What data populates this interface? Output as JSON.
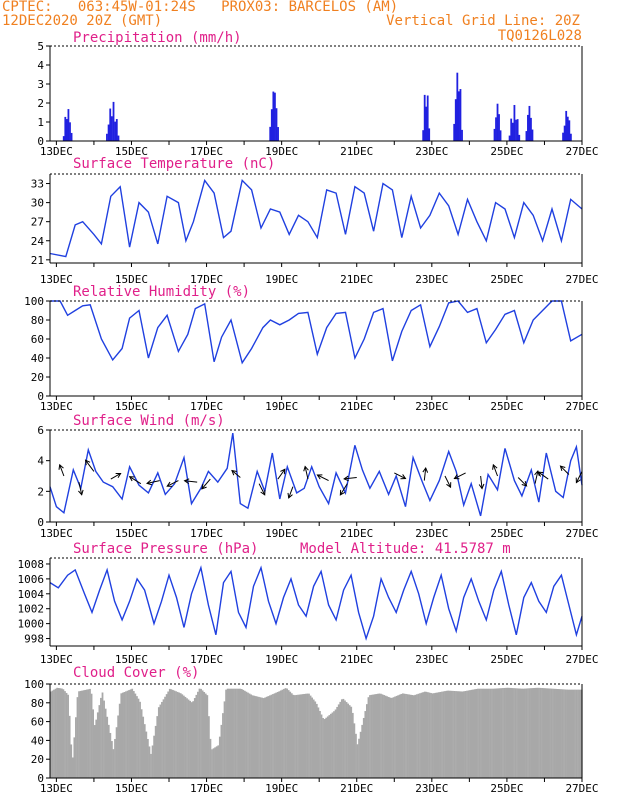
{
  "header": {
    "line1_left": "CPTEC:   063:45W-01:24S   PROX03: BARCELOS (AM)",
    "line2_left": "12DEC2020 20Z (GMT)",
    "line2_right": "Vertical Grid Line: 20Z",
    "line3_right": "TQ0126L028"
  },
  "colors": {
    "header": "#f08020",
    "title": "#e0208a",
    "series": "#2040e0",
    "bars": "#2020e0",
    "cloud": "#a8a8a8"
  },
  "x_tick_labels": [
    "13DEC",
    "15DEC",
    "17DEC",
    "19DEC",
    "21DEC",
    "23DEC",
    "25DEC",
    "27DEC"
  ],
  "chart_data": [
    {
      "type": "bar",
      "title": "Precipitation (mm/h)",
      "ylim": [
        0,
        5
      ],
      "yticks": [
        0,
        1,
        2,
        3,
        4,
        5
      ],
      "x_days": [
        12.83,
        27.0
      ],
      "events": [
        {
          "x": 13.3,
          "peak": 1.8,
          "width": 0.25
        },
        {
          "x": 14.5,
          "peak": 2.1,
          "width": 0.35
        },
        {
          "x": 18.8,
          "peak": 3.0,
          "width": 0.25
        },
        {
          "x": 22.85,
          "peak": 3.0,
          "width": 0.2
        },
        {
          "x": 23.7,
          "peak": 3.9,
          "width": 0.25
        },
        {
          "x": 24.75,
          "peak": 2.1,
          "width": 0.2
        },
        {
          "x": 25.2,
          "peak": 1.9,
          "width": 0.3
        },
        {
          "x": 25.6,
          "peak": 2.0,
          "width": 0.2
        },
        {
          "x": 26.6,
          "peak": 1.7,
          "width": 0.25
        }
      ]
    },
    {
      "type": "line",
      "title": "Surface Temperature (nC)",
      "ylim": [
        20.5,
        34.5
      ],
      "yticks": [
        21,
        24,
        27,
        30,
        33
      ],
      "x": [
        12.83,
        13.25,
        13.5,
        13.7,
        14.0,
        14.2,
        14.45,
        14.7,
        14.95,
        15.2,
        15.45,
        15.7,
        15.95,
        16.25,
        16.45,
        16.65,
        16.95,
        17.2,
        17.45,
        17.65,
        17.95,
        18.2,
        18.45,
        18.7,
        18.95,
        19.2,
        19.45,
        19.7,
        19.95,
        20.2,
        20.45,
        20.7,
        20.95,
        21.2,
        21.45,
        21.7,
        21.95,
        22.2,
        22.45,
        22.7,
        22.95,
        23.2,
        23.45,
        23.7,
        23.95,
        24.2,
        24.45,
        24.7,
        24.95,
        25.2,
        25.45,
        25.7,
        25.95,
        26.2,
        26.45,
        26.7,
        27.0
      ],
      "y": [
        22.0,
        21.5,
        26.5,
        27.0,
        25.0,
        23.5,
        31.0,
        32.5,
        23.0,
        30.0,
        28.5,
        23.5,
        31.0,
        30.0,
        24.0,
        27.0,
        33.5,
        31.5,
        24.5,
        25.5,
        33.5,
        32.0,
        26.0,
        29.0,
        28.5,
        25.0,
        28.0,
        27.0,
        24.5,
        32.0,
        31.5,
        25.0,
        32.5,
        31.5,
        25.5,
        33.0,
        32.0,
        24.5,
        31.0,
        26.0,
        28.0,
        31.5,
        29.5,
        25.0,
        30.5,
        27.0,
        24.0,
        30.0,
        29.0,
        24.5,
        30.0,
        28.0,
        24.0,
        29.0,
        24.0,
        30.5,
        29.0
      ]
    },
    {
      "type": "line",
      "title": "Relative Humidity (%)",
      "ylim": [
        0,
        100
      ],
      "yticks": [
        0,
        20,
        40,
        60,
        80,
        100
      ],
      "x": [
        12.83,
        13.1,
        13.3,
        13.5,
        13.7,
        13.9,
        14.2,
        14.5,
        14.75,
        14.95,
        15.2,
        15.45,
        15.7,
        15.95,
        16.25,
        16.5,
        16.7,
        16.95,
        17.2,
        17.4,
        17.65,
        17.95,
        18.2,
        18.5,
        18.7,
        18.95,
        19.2,
        19.45,
        19.7,
        19.95,
        20.2,
        20.45,
        20.7,
        20.95,
        21.2,
        21.45,
        21.7,
        21.95,
        22.2,
        22.45,
        22.7,
        22.95,
        23.2,
        23.45,
        23.7,
        23.95,
        24.2,
        24.45,
        24.7,
        24.95,
        25.2,
        25.45,
        25.7,
        25.95,
        26.2,
        26.45,
        26.7,
        27.0
      ],
      "y": [
        100,
        100,
        85,
        90,
        95,
        96,
        60,
        38,
        50,
        82,
        90,
        40,
        72,
        85,
        47,
        65,
        92,
        97,
        36,
        62,
        80,
        35,
        50,
        72,
        80,
        75,
        80,
        87,
        88,
        44,
        72,
        87,
        88,
        40,
        60,
        88,
        92,
        37,
        68,
        90,
        96,
        52,
        73,
        98,
        100,
        88,
        92,
        56,
        70,
        86,
        90,
        56,
        80,
        90,
        100,
        100,
        58,
        65
      ]
    },
    {
      "type": "line",
      "title": "Surface Wind (m/s)",
      "ylim": [
        0,
        6
      ],
      "yticks": [
        0,
        2,
        4,
        6
      ],
      "x": [
        12.83,
        13.0,
        13.2,
        13.45,
        13.65,
        13.85,
        14.05,
        14.25,
        14.5,
        14.75,
        14.95,
        15.2,
        15.45,
        15.7,
        15.9,
        16.15,
        16.4,
        16.6,
        16.85,
        17.05,
        17.3,
        17.55,
        17.7,
        17.9,
        18.1,
        18.35,
        18.55,
        18.75,
        18.95,
        19.15,
        19.4,
        19.6,
        19.8,
        20.0,
        20.25,
        20.45,
        20.7,
        20.95,
        21.15,
        21.35,
        21.6,
        21.85,
        22.05,
        22.3,
        22.5,
        22.75,
        22.95,
        23.2,
        23.45,
        23.65,
        23.85,
        24.05,
        24.3,
        24.5,
        24.75,
        24.95,
        25.2,
        25.4,
        25.65,
        25.85,
        26.05,
        26.3,
        26.5,
        26.7,
        26.85,
        27.0
      ],
      "y": [
        2.3,
        1.0,
        0.6,
        3.4,
        2.2,
        4.7,
        3.3,
        2.6,
        2.3,
        1.5,
        3.6,
        2.4,
        1.9,
        3.2,
        1.8,
        2.5,
        4.2,
        1.2,
        2.2,
        3.3,
        2.6,
        3.5,
        5.8,
        1.2,
        0.9,
        3.3,
        2.0,
        4.5,
        1.5,
        3.6,
        1.9,
        2.2,
        3.6,
        2.3,
        1.2,
        3.2,
        1.9,
        5.0,
        3.4,
        2.2,
        3.3,
        1.8,
        3.0,
        1.0,
        4.2,
        2.6,
        1.4,
        2.7,
        4.6,
        3.3,
        1.1,
        2.5,
        0.4,
        3.1,
        2.1,
        4.8,
        2.7,
        1.7,
        3.4,
        1.3,
        4.5,
        2.0,
        1.6,
        4.0,
        4.9,
        2.4
      ],
      "arrows": [
        {
          "x": 13.2,
          "y": 3.0,
          "dx": -0.3,
          "dy": -0.8
        },
        {
          "x": 13.6,
          "y": 2.6,
          "dx": 0.2,
          "dy": 0.9
        },
        {
          "x": 14.0,
          "y": 3.3,
          "dx": -0.6,
          "dy": -0.8
        },
        {
          "x": 14.45,
          "y": 2.8,
          "dx": 0.7,
          "dy": -0.4
        },
        {
          "x": 15.25,
          "y": 2.5,
          "dx": -0.8,
          "dy": -0.5
        },
        {
          "x": 15.75,
          "y": 2.7,
          "dx": -0.9,
          "dy": 0.2
        },
        {
          "x": 16.25,
          "y": 2.7,
          "dx": -0.8,
          "dy": 0.4
        },
        {
          "x": 16.75,
          "y": 2.6,
          "dx": -0.9,
          "dy": -0.1
        },
        {
          "x": 17.1,
          "y": 2.8,
          "dx": -0.6,
          "dy": 0.7
        },
        {
          "x": 17.9,
          "y": 2.9,
          "dx": -0.6,
          "dy": -0.5
        },
        {
          "x": 18.4,
          "y": 2.5,
          "dx": 0.4,
          "dy": 0.8
        },
        {
          "x": 18.9,
          "y": 2.8,
          "dx": 0.5,
          "dy": -0.7
        },
        {
          "x": 19.3,
          "y": 2.3,
          "dx": -0.3,
          "dy": 0.8
        },
        {
          "x": 19.7,
          "y": 2.8,
          "dx": -0.2,
          "dy": -0.9
        },
        {
          "x": 20.25,
          "y": 2.7,
          "dx": -0.8,
          "dy": -0.4
        },
        {
          "x": 20.75,
          "y": 2.5,
          "dx": -0.5,
          "dy": 0.8
        },
        {
          "x": 21.0,
          "y": 2.9,
          "dx": -0.9,
          "dy": 0.1
        },
        {
          "x": 22.0,
          "y": 3.2,
          "dx": 0.8,
          "dy": 0.4
        },
        {
          "x": 22.8,
          "y": 2.7,
          "dx": 0.1,
          "dy": -0.9
        },
        {
          "x": 23.35,
          "y": 3.0,
          "dx": 0.4,
          "dy": 0.8
        },
        {
          "x": 23.9,
          "y": 3.2,
          "dx": -0.8,
          "dy": 0.4
        },
        {
          "x": 24.3,
          "y": 3.0,
          "dx": 0.1,
          "dy": 0.9
        },
        {
          "x": 24.75,
          "y": 3.0,
          "dx": -0.3,
          "dy": -0.8
        },
        {
          "x": 25.3,
          "y": 2.9,
          "dx": 0.6,
          "dy": 0.6
        },
        {
          "x": 25.75,
          "y": 2.5,
          "dx": 0.2,
          "dy": -0.9
        },
        {
          "x": 26.1,
          "y": 2.8,
          "dx": -0.7,
          "dy": -0.5
        },
        {
          "x": 26.65,
          "y": 3.1,
          "dx": -0.6,
          "dy": -0.6
        },
        {
          "x": 27.0,
          "y": 3.3,
          "dx": -0.4,
          "dy": 0.8
        }
      ]
    },
    {
      "type": "line",
      "title": "Surface Pressure (hPa)",
      "annotation": "Model Altitude: 41.5787 m",
      "ylim": [
        997,
        1008.8
      ],
      "yticks": [
        998,
        1000,
        1002,
        1004,
        1006,
        1008
      ],
      "x": [
        12.83,
        13.05,
        13.3,
        13.5,
        13.75,
        13.95,
        14.15,
        14.35,
        14.55,
        14.75,
        14.95,
        15.15,
        15.35,
        15.6,
        15.8,
        16.0,
        16.2,
        16.4,
        16.6,
        16.85,
        17.05,
        17.25,
        17.45,
        17.65,
        17.85,
        18.05,
        18.25,
        18.45,
        18.65,
        18.85,
        19.05,
        19.25,
        19.45,
        19.65,
        19.85,
        20.05,
        20.25,
        20.45,
        20.65,
        20.85,
        21.05,
        21.25,
        21.45,
        21.65,
        21.85,
        22.05,
        22.25,
        22.45,
        22.65,
        22.85,
        23.05,
        23.25,
        23.45,
        23.65,
        23.85,
        24.05,
        24.25,
        24.45,
        24.65,
        24.85,
        25.05,
        25.25,
        25.45,
        25.65,
        25.85,
        26.05,
        26.25,
        26.45,
        26.65,
        26.85,
        27.0
      ],
      "y": [
        1005.5,
        1004.8,
        1006.5,
        1007.2,
        1004.0,
        1001.5,
        1004.5,
        1007.2,
        1003.0,
        1000.5,
        1003.0,
        1006.0,
        1004.5,
        1000.0,
        1003.0,
        1006.5,
        1003.5,
        999.5,
        1004.0,
        1007.5,
        1002.5,
        998.5,
        1005.5,
        1007.0,
        1001.5,
        999.5,
        1005.0,
        1007.5,
        1003.0,
        1000.0,
        1003.5,
        1006.0,
        1002.5,
        1001.0,
        1005.0,
        1007.0,
        1002.5,
        1000.5,
        1004.5,
        1006.5,
        1001.5,
        998.0,
        1001.0,
        1006.0,
        1003.5,
        1001.5,
        1004.5,
        1007.0,
        1004.0,
        1000.0,
        1003.5,
        1006.5,
        1002.0,
        999.0,
        1003.5,
        1006.0,
        1003.0,
        1000.5,
        1004.5,
        1007.0,
        1002.5,
        998.5,
        1003.5,
        1005.5,
        1003.0,
        1001.5,
        1005.0,
        1006.5,
        1002.5,
        998.5,
        1001.0
      ]
    },
    {
      "type": "bar",
      "title": "Cloud Cover (%)",
      "ylim": [
        0,
        100
      ],
      "yticks": [
        0,
        20,
        40,
        60,
        80,
        100
      ],
      "x_days": [
        12.83,
        27.0
      ],
      "anchors": [
        {
          "x": 12.83,
          "y": 92
        },
        {
          "x": 13.0,
          "y": 96
        },
        {
          "x": 13.15,
          "y": 95
        },
        {
          "x": 13.3,
          "y": 88
        },
        {
          "x": 13.4,
          "y": 15
        },
        {
          "x": 13.55,
          "y": 92
        },
        {
          "x": 13.9,
          "y": 95
        },
        {
          "x": 14.0,
          "y": 55
        },
        {
          "x": 14.2,
          "y": 92
        },
        {
          "x": 14.5,
          "y": 30
        },
        {
          "x": 14.7,
          "y": 90
        },
        {
          "x": 15.0,
          "y": 95
        },
        {
          "x": 15.2,
          "y": 82
        },
        {
          "x": 15.5,
          "y": 25
        },
        {
          "x": 15.7,
          "y": 75
        },
        {
          "x": 16.0,
          "y": 95
        },
        {
          "x": 16.3,
          "y": 90
        },
        {
          "x": 16.6,
          "y": 80
        },
        {
          "x": 16.8,
          "y": 96
        },
        {
          "x": 17.0,
          "y": 88
        },
        {
          "x": 17.1,
          "y": 30
        },
        {
          "x": 17.3,
          "y": 35
        },
        {
          "x": 17.5,
          "y": 95
        },
        {
          "x": 17.9,
          "y": 95
        },
        {
          "x": 18.2,
          "y": 88
        },
        {
          "x": 18.5,
          "y": 85
        },
        {
          "x": 18.9,
          "y": 92
        },
        {
          "x": 19.1,
          "y": 96
        },
        {
          "x": 19.3,
          "y": 88
        },
        {
          "x": 19.7,
          "y": 90
        },
        {
          "x": 19.9,
          "y": 80
        },
        {
          "x": 20.1,
          "y": 62
        },
        {
          "x": 20.4,
          "y": 72
        },
        {
          "x": 20.6,
          "y": 85
        },
        {
          "x": 20.85,
          "y": 75
        },
        {
          "x": 21.0,
          "y": 35
        },
        {
          "x": 21.3,
          "y": 88
        },
        {
          "x": 21.6,
          "y": 90
        },
        {
          "x": 21.9,
          "y": 85
        },
        {
          "x": 22.2,
          "y": 90
        },
        {
          "x": 22.5,
          "y": 88
        },
        {
          "x": 22.8,
          "y": 92
        },
        {
          "x": 23.0,
          "y": 90
        },
        {
          "x": 23.4,
          "y": 93
        },
        {
          "x": 23.8,
          "y": 92
        },
        {
          "x": 24.2,
          "y": 95
        },
        {
          "x": 24.6,
          "y": 95
        },
        {
          "x": 25.0,
          "y": 96
        },
        {
          "x": 25.4,
          "y": 95
        },
        {
          "x": 25.8,
          "y": 96
        },
        {
          "x": 26.2,
          "y": 95
        },
        {
          "x": 26.6,
          "y": 94
        },
        {
          "x": 27.0,
          "y": 94
        }
      ]
    }
  ]
}
